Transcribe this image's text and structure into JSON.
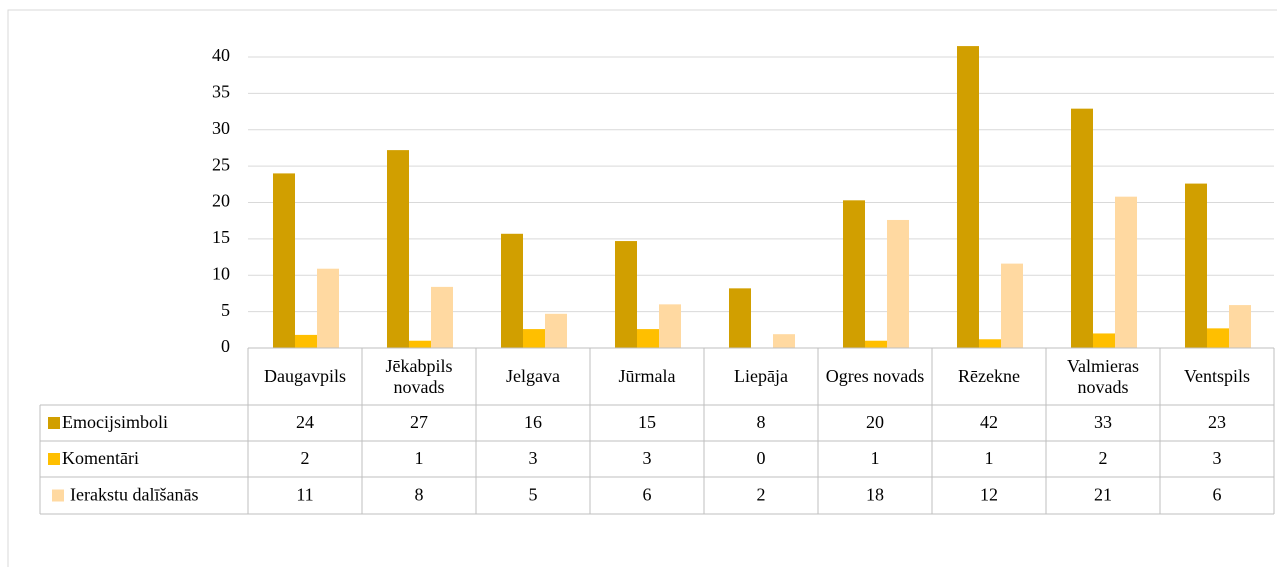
{
  "chart_data": {
    "type": "bar",
    "categories": [
      "Daugavpils",
      "Jēkabpils novads",
      "Jelgava",
      "Jūrmala",
      "Liepāja",
      "Ogres novads",
      "Rēzekne",
      "Valmieras novads",
      "Ventspils"
    ],
    "series": [
      {
        "name": "Emocijsimboli",
        "color": "#d19f00",
        "values": [
          24.0,
          27.2,
          15.7,
          14.7,
          8.2,
          20.3,
          41.5,
          32.9,
          22.6
        ],
        "value_labels": [
          "24",
          "27",
          "16",
          "15",
          "8",
          "20",
          "42",
          "33",
          "23"
        ]
      },
      {
        "name": "Komentāri",
        "color": "#ffbf00",
        "values": [
          1.8,
          1.0,
          2.6,
          2.6,
          0,
          1.0,
          1.2,
          2.0,
          2.7
        ],
        "value_labels": [
          "2",
          "1",
          "3",
          "3",
          "0",
          "1",
          "1",
          "2",
          "3"
        ]
      },
      {
        "name": "Ierakstu dalīšanās",
        "color": "#ffd9a1",
        "values": [
          10.9,
          8.4,
          4.7,
          6.0,
          1.9,
          17.6,
          11.6,
          20.8,
          5.9
        ],
        "value_labels": [
          "11",
          "8",
          "5",
          "6",
          "2",
          "18",
          "12",
          "21",
          "6"
        ]
      }
    ],
    "ylim": [
      0,
      45
    ],
    "yticks": [
      0,
      5,
      10,
      15,
      20,
      25,
      30,
      35,
      40
    ],
    "grid": true
  }
}
